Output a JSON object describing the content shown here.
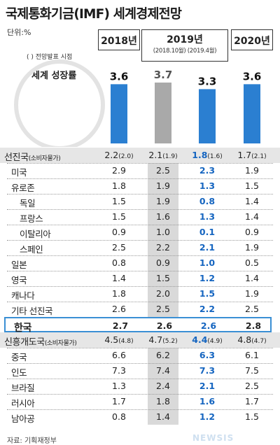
{
  "title": "국제통화기금(IMF) 세계경제전망",
  "unit": "단위:%",
  "note": "( ) 전망발표 시점",
  "headers": [
    {
      "year": "2018년",
      "sub": ""
    },
    {
      "year": "2019년",
      "sub": "(2018.10월) (2019.4월)"
    },
    {
      "year": "2020년",
      "sub": ""
    }
  ],
  "growth_label": "세계 성장률",
  "source": "자료: 기획재정부",
  "watermark": "NEWSIS",
  "colors": {
    "bar_blue": "#2b7fd1",
    "bar_gray": "#a9a9a9",
    "highlight": "#1565c0",
    "korea_border": "#3a8fd4"
  },
  "chart_data": {
    "type": "bar",
    "title": "세계 성장률",
    "categories": [
      "2018년",
      "2019년 (2018.10월)",
      "2019년 (2019.4월)",
      "2020년"
    ],
    "values": [
      3.6,
      3.7,
      3.3,
      3.6
    ],
    "bar_colors": [
      "#2b7fd1",
      "#a9a9a9",
      "#2b7fd1",
      "#2b7fd1"
    ],
    "ylim": [
      0,
      4.2
    ]
  },
  "rows": [
    {
      "name": "선진국",
      "note": "(소비자물가)",
      "kind": "section",
      "indent": 0,
      "v": [
        {
          "m": "2.2",
          "p": "(2.0)"
        },
        {
          "m": "2.1",
          "p": "(1.9)"
        },
        {
          "m": "1.8",
          "p": "(1.6)"
        },
        {
          "m": "1.7",
          "p": "(2.1)"
        }
      ]
    },
    {
      "name": "미국",
      "kind": "item",
      "indent": 1,
      "v": [
        {
          "m": "2.9"
        },
        {
          "m": "2.5"
        },
        {
          "m": "2.3"
        },
        {
          "m": "1.9"
        }
      ]
    },
    {
      "name": "유로존",
      "kind": "item",
      "indent": 1,
      "v": [
        {
          "m": "1.8"
        },
        {
          "m": "1.9"
        },
        {
          "m": "1.3"
        },
        {
          "m": "1.5"
        }
      ]
    },
    {
      "name": "독일",
      "kind": "item",
      "indent": 2,
      "v": [
        {
          "m": "1.5"
        },
        {
          "m": "1.9"
        },
        {
          "m": "0.8"
        },
        {
          "m": "1.4"
        }
      ]
    },
    {
      "name": "프랑스",
      "kind": "item",
      "indent": 2,
      "v": [
        {
          "m": "1.5"
        },
        {
          "m": "1.6"
        },
        {
          "m": "1.3"
        },
        {
          "m": "1.4"
        }
      ]
    },
    {
      "name": "이탈리아",
      "kind": "item",
      "indent": 2,
      "v": [
        {
          "m": "0.9"
        },
        {
          "m": "1.0"
        },
        {
          "m": "0.1"
        },
        {
          "m": "0.9"
        }
      ]
    },
    {
      "name": "스페인",
      "kind": "item",
      "indent": 2,
      "v": [
        {
          "m": "2.5"
        },
        {
          "m": "2.2"
        },
        {
          "m": "2.1"
        },
        {
          "m": "1.9"
        }
      ]
    },
    {
      "name": "일본",
      "kind": "item",
      "indent": 1,
      "v": [
        {
          "m": "0.8"
        },
        {
          "m": "0.9"
        },
        {
          "m": "1.0"
        },
        {
          "m": "0.5"
        }
      ]
    },
    {
      "name": "영국",
      "kind": "item",
      "indent": 1,
      "v": [
        {
          "m": "1.4"
        },
        {
          "m": "1.5"
        },
        {
          "m": "1.2"
        },
        {
          "m": "1.4"
        }
      ]
    },
    {
      "name": "캐나다",
      "kind": "item",
      "indent": 1,
      "v": [
        {
          "m": "1.8"
        },
        {
          "m": "2.0"
        },
        {
          "m": "1.5"
        },
        {
          "m": "1.9"
        }
      ]
    },
    {
      "name": "기타 선진국",
      "kind": "item",
      "indent": 1,
      "v": [
        {
          "m": "2.6"
        },
        {
          "m": "2.5"
        },
        {
          "m": "2.2"
        },
        {
          "m": "2.5"
        }
      ]
    },
    {
      "name": "한국",
      "kind": "korea",
      "indent": 1,
      "v": [
        {
          "m": "2.7"
        },
        {
          "m": "2.6"
        },
        {
          "m": "2.6"
        },
        {
          "m": "2.8"
        }
      ]
    },
    {
      "name": "신흥개도국",
      "note": "(소비자물가)",
      "kind": "section",
      "indent": 0,
      "v": [
        {
          "m": "4.5",
          "p": "(4.8)"
        },
        {
          "m": "4.7",
          "p": "(5.2)"
        },
        {
          "m": "4.4",
          "p": "(4.9)"
        },
        {
          "m": "4.8",
          "p": "(4.7)"
        }
      ]
    },
    {
      "name": "중국",
      "kind": "item",
      "indent": 1,
      "v": [
        {
          "m": "6.6"
        },
        {
          "m": "6.2"
        },
        {
          "m": "6.3"
        },
        {
          "m": "6.1"
        }
      ]
    },
    {
      "name": "인도",
      "kind": "item",
      "indent": 1,
      "v": [
        {
          "m": "7.3"
        },
        {
          "m": "7.4"
        },
        {
          "m": "7.3"
        },
        {
          "m": "7.5"
        }
      ]
    },
    {
      "name": "브라질",
      "kind": "item",
      "indent": 1,
      "v": [
        {
          "m": "1.3"
        },
        {
          "m": "2.4"
        },
        {
          "m": "2.1"
        },
        {
          "m": "2.5"
        }
      ]
    },
    {
      "name": "러시아",
      "kind": "item",
      "indent": 1,
      "v": [
        {
          "m": "1.7"
        },
        {
          "m": "1.8"
        },
        {
          "m": "1.6"
        },
        {
          "m": "1.7"
        }
      ]
    },
    {
      "name": "남아공",
      "kind": "item",
      "indent": 1,
      "v": [
        {
          "m": "0.8"
        },
        {
          "m": "1.4"
        },
        {
          "m": "1.2"
        },
        {
          "m": "1.5"
        }
      ]
    }
  ]
}
